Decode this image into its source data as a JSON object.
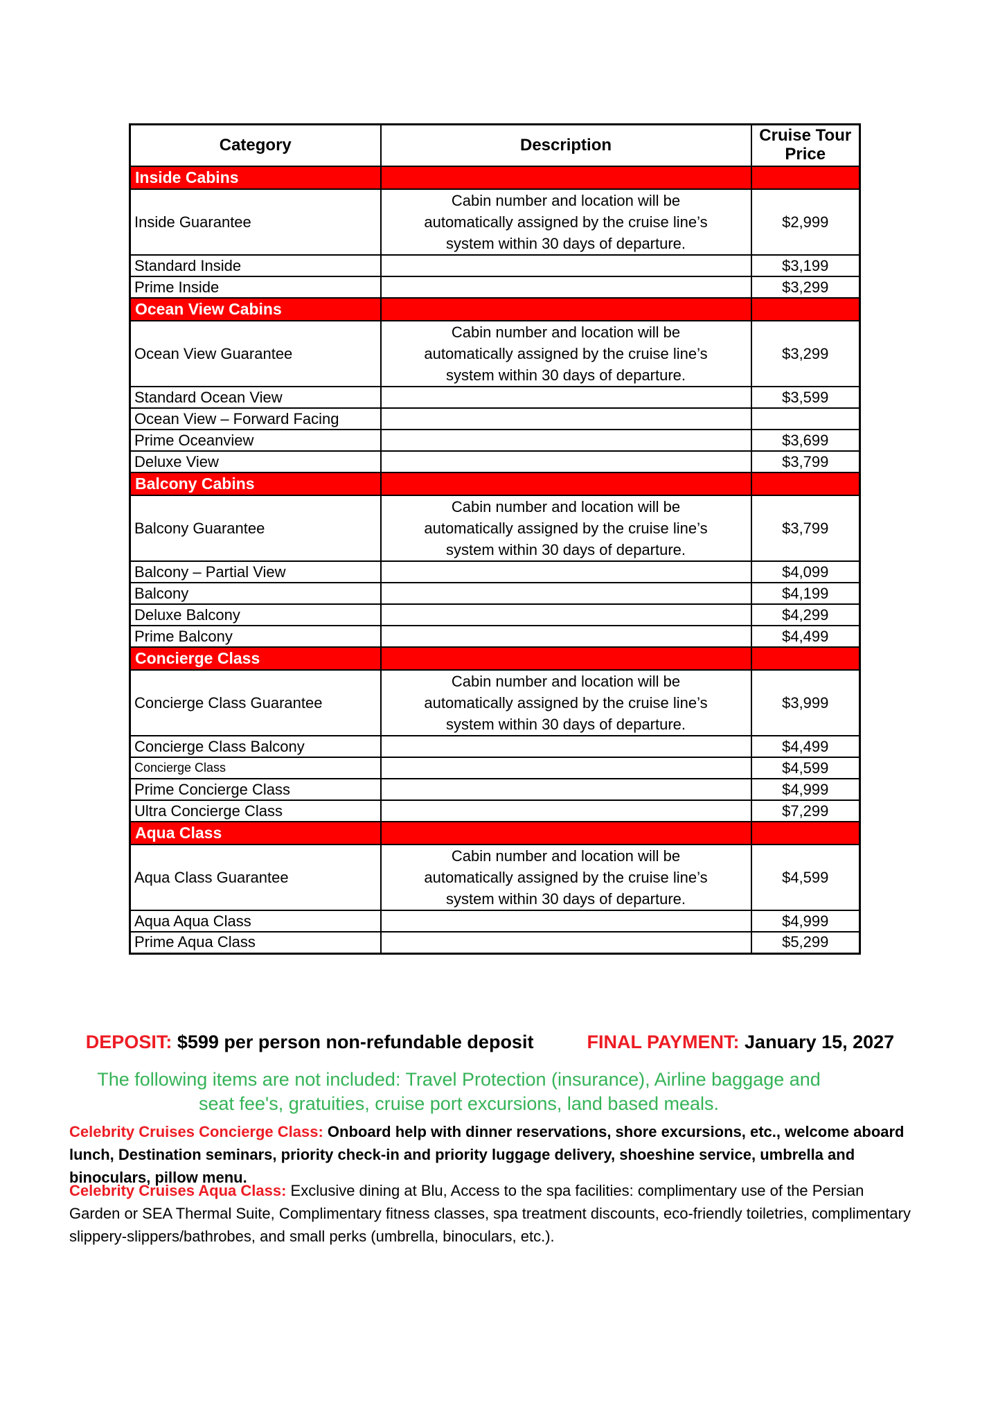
{
  "table": {
    "headers": [
      "Category",
      "Description",
      "Cruise Tour Price"
    ],
    "section_bg_color": "#fe0000",
    "section_text_color": "#ffffff",
    "rows": [
      {
        "type": "section",
        "label": "Inside Cabins"
      },
      {
        "type": "item",
        "tall": true,
        "category": "Inside Guarantee",
        "description_lines": [
          "Cabin number and location will be",
          "automatically assigned by the cruise line’s",
          "system within 30 days of departure."
        ],
        "price": "$2,999"
      },
      {
        "type": "item",
        "category": "Standard Inside",
        "description_lines": [],
        "price": "$3,199"
      },
      {
        "type": "item",
        "category": "Prime Inside",
        "description_lines": [],
        "price": "$3,299"
      },
      {
        "type": "section",
        "label": "Ocean View Cabins"
      },
      {
        "type": "item",
        "tall": true,
        "category": "Ocean View Guarantee",
        "description_lines": [
          "Cabin number and location will be",
          "automatically assigned by the cruise line’s",
          "system within 30 days of departure."
        ],
        "price": "$3,299"
      },
      {
        "type": "item",
        "category": "Standard Ocean View",
        "description_lines": [],
        "price": "$3,599"
      },
      {
        "type": "item",
        "category": "Ocean View – Forward Facing",
        "description_lines": [],
        "price": ""
      },
      {
        "type": "item",
        "category": "Prime Oceanview",
        "description_lines": [],
        "price": "$3,699"
      },
      {
        "type": "item",
        "category": "Deluxe View",
        "description_lines": [],
        "price": "$3,799"
      },
      {
        "type": "section",
        "label": "Balcony Cabins"
      },
      {
        "type": "item",
        "tall": true,
        "category": "Balcony Guarantee",
        "description_lines": [
          "Cabin number and location will be",
          "automatically assigned by the cruise line’s",
          "system within 30 days of departure."
        ],
        "price": "$3,799"
      },
      {
        "type": "item",
        "category": "Balcony – Partial View",
        "description_lines": [],
        "price": "$4,099"
      },
      {
        "type": "item",
        "category": "Balcony",
        "description_lines": [],
        "price": "$4,199"
      },
      {
        "type": "item",
        "category": "Deluxe Balcony",
        "description_lines": [],
        "price": "$4,299"
      },
      {
        "type": "item",
        "category": "Prime Balcony",
        "description_lines": [],
        "price": "$4,499"
      },
      {
        "type": "section",
        "label": "Concierge Class"
      },
      {
        "type": "item",
        "tall": true,
        "category": "Concierge Class Guarantee",
        "description_lines": [
          "Cabin number and location will be",
          "automatically assigned by the cruise line’s",
          "system within 30 days of departure."
        ],
        "price": "$3,999"
      },
      {
        "type": "item",
        "category": "Concierge Class Balcony",
        "description_lines": [],
        "price": "$4,499"
      },
      {
        "type": "item",
        "small": true,
        "category": "Concierge Class",
        "description_lines": [],
        "price": "$4,599"
      },
      {
        "type": "item",
        "category": "Prime Concierge Class",
        "description_lines": [],
        "price": "$4,999"
      },
      {
        "type": "item",
        "category": "Ultra Concierge Class",
        "description_lines": [],
        "price": "$7,299"
      },
      {
        "type": "section",
        "label": "Aqua Class"
      },
      {
        "type": "item",
        "tall": true,
        "category": "Aqua Class Guarantee",
        "description_lines": [
          "Cabin number and location will be",
          "automatically assigned by the cruise line’s",
          "system within 30 days of departure."
        ],
        "price": "$4,599"
      },
      {
        "type": "item",
        "category": "Aqua Aqua Class",
        "description_lines": [],
        "price": "$4,999"
      },
      {
        "type": "item",
        "category": "Prime Aqua Class",
        "description_lines": [],
        "price": "$5,299"
      }
    ]
  },
  "deposit": {
    "deposit_label": "DEPOSIT:",
    "deposit_value": "$599 per person non-refundable deposit",
    "final_payment_label": "FINAL PAYMENT:",
    "final_payment_value": "January 15, 2027",
    "label_color": "#ed1c24"
  },
  "not_included_note": {
    "lines": [
      "The following items are not included: Travel Protection (insurance), Airline baggage and",
      "seat fee's, gratuities, cruise port excursions, land based meals."
    ],
    "text_color": "#35b357"
  },
  "concierge_paragraph": {
    "lead": "Celebrity Cruises Concierge Class:",
    "body": " Onboard help with dinner reservations, shore excursions, etc., welcome aboard lunch, Destination seminars, priority check-in and priority luggage delivery, shoeshine service, umbrella and binoculars, pillow menu.",
    "lead_color": "#ed1c24"
  },
  "aqua_paragraph": {
    "lead": "Celebrity Cruises Aqua Class:",
    "body": " Exclusive dining at Blu, Access to the spa facilities: complimentary use of the Persian Garden or SEA Thermal Suite, Complimentary fitness classes, spa treatment discounts, eco-friendly toiletries, complimentary slippery-slippers/bathrobes, and small perks (umbrella, binoculars, etc.).",
    "lead_color": "#ed1c24"
  }
}
